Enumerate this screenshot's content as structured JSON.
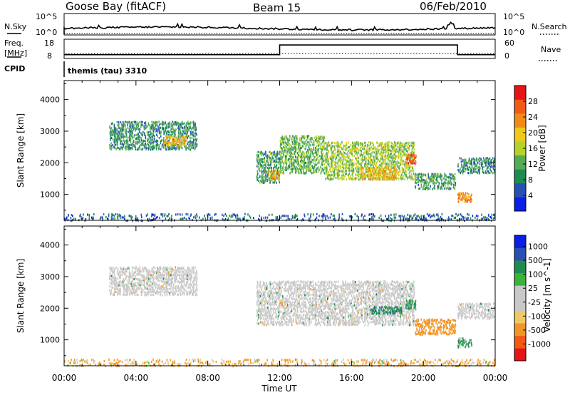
{
  "header": {
    "station": "Goose Bay (fitACF)",
    "beam": "Beam 15",
    "date": "06/Feb/2010"
  },
  "noise_panel": {
    "left_label": "N.Sky",
    "right_label": "N.Search",
    "left_ticks": [
      "10^5",
      "10^0"
    ],
    "right_ticks": [
      "10^5",
      "10^0"
    ]
  },
  "freq_panel": {
    "left_label_line1": "Freq.",
    "left_label_line2": "[MHz]",
    "right_label": "Nave",
    "left_ticks": [
      "18",
      "8"
    ],
    "right_ticks": [
      "60",
      "0"
    ],
    "freq_segments": [
      {
        "t0": 0.0,
        "t1": 12.0,
        "mhz": 10.4
      },
      {
        "t0": 12.0,
        "t1": 21.9,
        "mhz": 16.6
      },
      {
        "t0": 21.9,
        "t1": 24.0,
        "mhz": 10.4
      }
    ]
  },
  "cpid": {
    "label": "CPID",
    "program": "themis (tau) 3310"
  },
  "x_axis": {
    "title": "Time UT",
    "ticks": [
      "00:00",
      "04:00",
      "08:00",
      "12:00",
      "16:00",
      "20:00",
      "00:00"
    ]
  },
  "colors": {
    "power_scale": [
      "#0a1ee6",
      "#2850b4",
      "#1e8c50",
      "#55aa55",
      "#b4d228",
      "#f0c819",
      "#f08c14",
      "#f05a14",
      "#e61414"
    ],
    "velocity_scale": [
      "#e61414",
      "#f05a14",
      "#f09628",
      "#f0c864",
      "#c8c8c8",
      "#c8c8c8",
      "#3cb43c",
      "#1e8c50",
      "#2850b4",
      "#0a1ee6"
    ],
    "ground_scatter": "#a0a0a0"
  },
  "chart_data": [
    {
      "type": "heatmap",
      "title": "Power",
      "xlabel": "Time UT",
      "ylabel": "Slant Range [km]",
      "x_range_hours": [
        0,
        24
      ],
      "ylim": [
        180,
        4600
      ],
      "y_ticks": [
        1000,
        2000,
        3000,
        4000
      ],
      "colorbar_label": "Power [dB]",
      "colorbar_ticks": [
        "4",
        "8",
        "12",
        "16",
        "20",
        "24",
        "28"
      ],
      "colorbar_range": [
        0,
        30
      ],
      "echo_regions": [
        {
          "t0": 2.5,
          "t1": 7.4,
          "r0": 2450,
          "r1": 3350,
          "value": 9
        },
        {
          "t0": 5.5,
          "t1": 6.8,
          "r0": 2550,
          "r1": 2900,
          "value": 18
        },
        {
          "t0": 10.7,
          "t1": 12.0,
          "r0": 1400,
          "r1": 2400,
          "value": 10
        },
        {
          "t0": 11.3,
          "t1": 12.0,
          "r0": 1500,
          "r1": 1800,
          "value": 20
        },
        {
          "t0": 12.0,
          "t1": 14.5,
          "r0": 1700,
          "r1": 2900,
          "value": 12
        },
        {
          "t0": 14.5,
          "t1": 19.5,
          "r0": 1500,
          "r1": 2700,
          "value": 14
        },
        {
          "t0": 16.5,
          "t1": 18.5,
          "r0": 1500,
          "r1": 1900,
          "value": 20
        },
        {
          "t0": 19.0,
          "t1": 19.6,
          "r0": 2000,
          "r1": 2300,
          "value": 26
        },
        {
          "t0": 19.5,
          "t1": 21.8,
          "r0": 1200,
          "r1": 1700,
          "value": 10
        },
        {
          "t0": 21.9,
          "t1": 22.7,
          "r0": 800,
          "r1": 1100,
          "value": 22
        },
        {
          "t0": 21.9,
          "t1": 24.0,
          "r0": 1700,
          "r1": 2200,
          "value": 8
        },
        {
          "t0": 0.0,
          "t1": 24.0,
          "r0": 200,
          "r1": 430,
          "value": 6
        }
      ]
    },
    {
      "type": "heatmap",
      "title": "Velocity",
      "xlabel": "Time UT",
      "ylabel": "Slant Range [km]",
      "x_range_hours": [
        0,
        24
      ],
      "ylim": [
        180,
        4600
      ],
      "y_ticks": [
        1000,
        2000,
        3000,
        4000
      ],
      "colorbar_label": "Velocity [m s^-1]",
      "colorbar_ticks": [
        "1000",
        "500",
        "100",
        "25",
        "-25",
        "-100",
        "-500",
        "-1000"
      ],
      "echo_regions": [
        {
          "t0": 2.5,
          "t1": 7.4,
          "r0": 2450,
          "r1": 3350,
          "value": 0,
          "ground_scatter": true
        },
        {
          "t0": 10.7,
          "t1": 19.5,
          "r0": 1500,
          "r1": 2900,
          "value": 0,
          "ground_scatter": true
        },
        {
          "t0": 17.0,
          "t1": 18.8,
          "r0": 1850,
          "r1": 2100,
          "value": 400
        },
        {
          "t0": 19.0,
          "t1": 19.6,
          "r0": 2000,
          "r1": 2300,
          "value": 200
        },
        {
          "t0": 19.5,
          "t1": 21.8,
          "r0": 1200,
          "r1": 1700,
          "value": -300
        },
        {
          "t0": 21.9,
          "t1": 22.7,
          "r0": 800,
          "r1": 1100,
          "value": 150
        },
        {
          "t0": 21.9,
          "t1": 24.0,
          "r0": 1700,
          "r1": 2200,
          "value": 0,
          "ground_scatter": true
        },
        {
          "t0": 0.0,
          "t1": 24.0,
          "r0": 200,
          "r1": 430,
          "value": -120
        }
      ]
    }
  ]
}
